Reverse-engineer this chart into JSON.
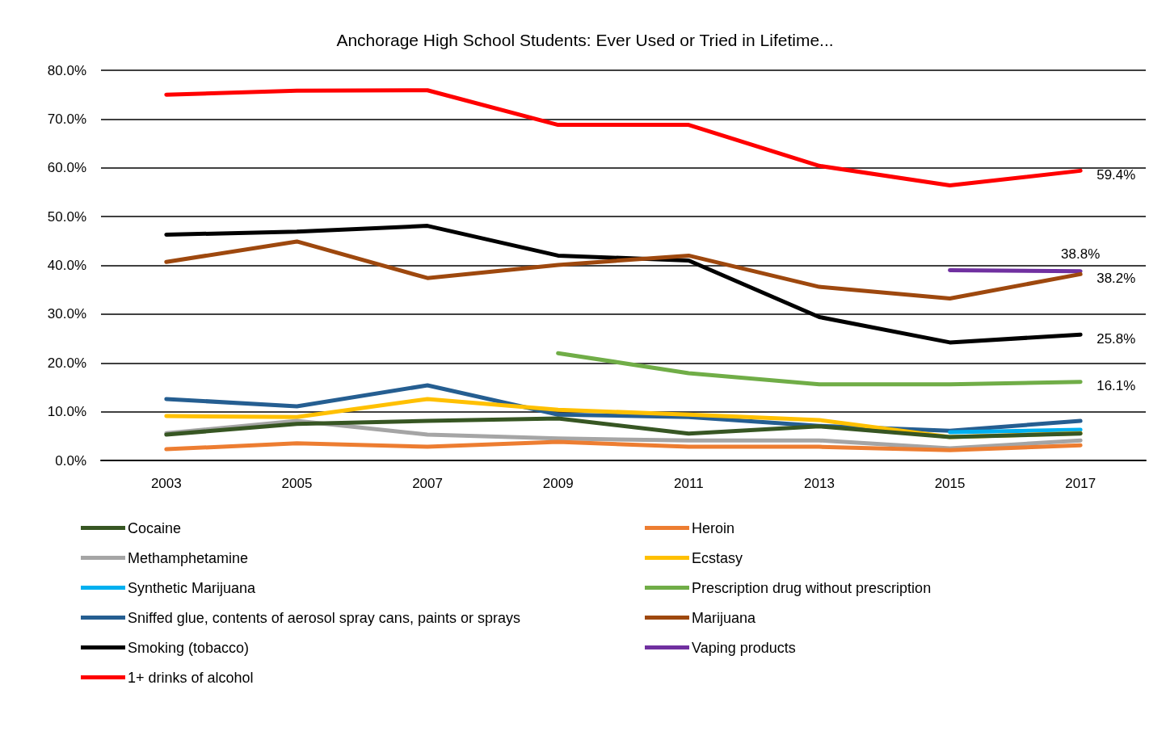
{
  "chart_data": {
    "type": "line",
    "title": "Anchorage High School Students: Ever Used or Tried in Lifetime...",
    "categories": [
      "2003",
      "2005",
      "2007",
      "2009",
      "2011",
      "2013",
      "2015",
      "2017"
    ],
    "ylim": [
      0,
      80
    ],
    "yticks": [
      {
        "value": 0,
        "label": "0.0%"
      },
      {
        "value": 10,
        "label": "10.0%"
      },
      {
        "value": 20,
        "label": "20.0%"
      },
      {
        "value": 30,
        "label": "30.0%"
      },
      {
        "value": 40,
        "label": "40.0%"
      },
      {
        "value": 50,
        "label": "50.0%"
      },
      {
        "value": 60,
        "label": "60.0%"
      },
      {
        "value": 70,
        "label": "70.0%"
      },
      {
        "value": 80,
        "label": "80.0%"
      }
    ],
    "grid": "y",
    "legend": "bottom",
    "marker": "none",
    "line_style": "solid",
    "series": [
      {
        "name": "Cocaine",
        "color": "#375623",
        "values": [
          5.3,
          7.5,
          8.1,
          8.6,
          5.5,
          7.0,
          4.8,
          5.5
        ]
      },
      {
        "name": "Heroin",
        "color": "#ed7d31",
        "values": [
          2.3,
          3.5,
          2.8,
          3.8,
          2.8,
          2.8,
          2.1,
          3.1
        ]
      },
      {
        "name": "Methamphetamine",
        "color": "#a5a5a5",
        "values": [
          5.6,
          8.1,
          5.3,
          4.5,
          4.1,
          4.1,
          2.5,
          4.1
        ]
      },
      {
        "name": "Ecstasy",
        "color": "#ffc000",
        "values": [
          9.1,
          8.9,
          12.6,
          10.4,
          9.4,
          8.3,
          4.8,
          5.6
        ]
      },
      {
        "name": "Synthetic Marijuana",
        "color": "#00b0f0",
        "values": [
          null,
          null,
          null,
          null,
          null,
          null,
          5.8,
          6.3
        ]
      },
      {
        "name": "Prescription drug without prescription",
        "color": "#70ad47",
        "values": [
          null,
          null,
          null,
          22.0,
          17.9,
          15.6,
          15.6,
          16.1
        ],
        "value_labels": [
          null,
          null,
          null,
          null,
          null,
          null,
          null,
          "16.1%"
        ]
      },
      {
        "name": "Sniffed glue, contents of aerosol spray cans, paints or sprays",
        "color": "#255e91",
        "values": [
          12.6,
          11.1,
          15.4,
          9.4,
          8.9,
          7.1,
          6.1,
          8.1
        ]
      },
      {
        "name": "Marijuana",
        "color": "#9e480e",
        "values": [
          40.7,
          44.9,
          37.4,
          40.1,
          42.0,
          35.6,
          33.2,
          38.2
        ],
        "value_labels": [
          null,
          null,
          null,
          null,
          null,
          null,
          null,
          "38.2%"
        ]
      },
      {
        "name": "Smoking (tobacco)",
        "color": "#000000",
        "values": [
          46.3,
          46.9,
          48.1,
          42.0,
          41.0,
          29.4,
          24.2,
          25.8
        ],
        "value_labels": [
          null,
          null,
          null,
          null,
          null,
          null,
          null,
          "25.8%"
        ]
      },
      {
        "name": "Vaping products",
        "color": "#7030a0",
        "values": [
          null,
          null,
          null,
          null,
          null,
          null,
          39.0,
          38.8
        ],
        "value_labels": [
          null,
          null,
          null,
          null,
          null,
          null,
          null,
          "38.8%"
        ]
      },
      {
        "name": "1+ drinks of alcohol",
        "color": "#ff0000",
        "values": [
          75.0,
          75.8,
          75.9,
          68.8,
          68.8,
          60.4,
          56.4,
          59.4
        ],
        "value_labels": [
          null,
          null,
          null,
          null,
          null,
          null,
          null,
          "59.4%"
        ]
      }
    ]
  }
}
